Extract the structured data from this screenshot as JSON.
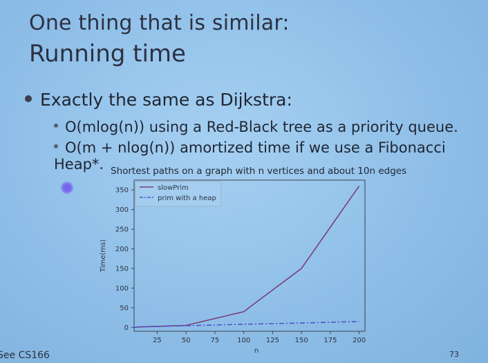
{
  "slide": {
    "title_line1": "One thing that is similar:",
    "title_line2": "Running time",
    "bullet": "Exactly the same as Dijkstra:",
    "sub_bullets": [
      "O(mlog(n)) using a Red-Black tree as a priority queue.",
      "O(m + nlog(n)) amortized time if we use a Fibonacci Heap*."
    ],
    "footnote": "See CS166",
    "page_number": "73"
  },
  "chart_data": {
    "type": "line",
    "title": "Shortest paths on a graph with n vertices and about 10n edges",
    "xlabel": "n",
    "ylabel": "Time(ms)",
    "xlim": [
      5,
      205
    ],
    "ylim": [
      -10,
      375
    ],
    "xticks": [
      25,
      50,
      75,
      100,
      125,
      150,
      175,
      200
    ],
    "yticks": [
      0,
      50,
      100,
      150,
      200,
      250,
      300,
      350
    ],
    "legend_position": "top-left",
    "grid": false,
    "series": [
      {
        "name": "slowPrim",
        "style": "solid",
        "color": "#7a3f7a",
        "x": [
          5,
          10,
          20,
          50,
          100,
          150,
          200
        ],
        "y": [
          0,
          1,
          2,
          5,
          40,
          150,
          360
        ]
      },
      {
        "name": "prim with a heap",
        "style": "dashdot",
        "color": "#4a55c8",
        "x": [
          5,
          10,
          20,
          50,
          100,
          150,
          200
        ],
        "y": [
          0,
          1,
          2,
          4,
          8,
          11,
          15
        ]
      }
    ]
  },
  "colors": {
    "background": "#8fbfe8",
    "text": "#2b3142"
  }
}
